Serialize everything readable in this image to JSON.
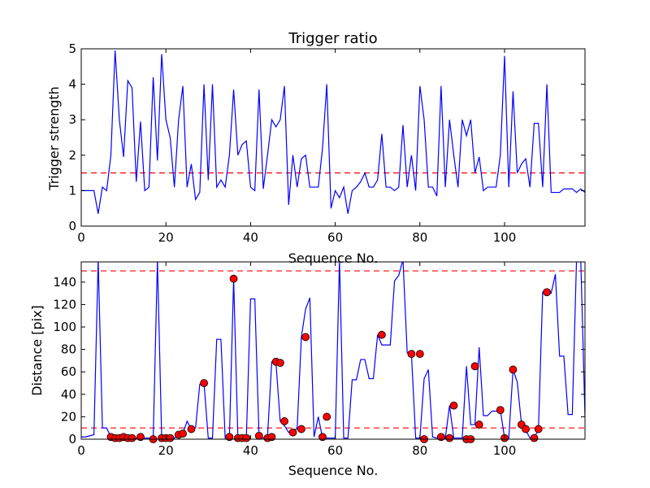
{
  "chart_data": [
    {
      "type": "line",
      "title": "Trigger ratio",
      "xlabel": "Sequence No.",
      "ylabel": "Trigger strength",
      "xlim": [
        0,
        119
      ],
      "ylim": [
        0,
        5
      ],
      "xticks": [
        0,
        20,
        40,
        60,
        80,
        100
      ],
      "yticks": [
        0,
        1,
        2,
        3,
        4,
        5
      ],
      "threshold": 1.5,
      "series": [
        {
          "color": "#0000ff",
          "values": [
            1.0,
            1.0,
            1.0,
            1.0,
            0.35,
            1.1,
            1.0,
            2.0,
            4.95,
            3.0,
            1.95,
            4.1,
            3.9,
            1.25,
            2.95,
            1.0,
            1.1,
            4.2,
            1.85,
            4.85,
            3.0,
            2.5,
            1.1,
            3.0,
            3.95,
            1.1,
            1.75,
            0.75,
            0.95,
            4.0,
            1.3,
            4.0,
            1.1,
            1.3,
            1.1,
            2.0,
            3.85,
            2.0,
            2.3,
            2.4,
            1.1,
            1.0,
            3.85,
            1.05,
            2.0,
            3.0,
            2.8,
            3.0,
            3.95,
            0.6,
            2.0,
            1.1,
            1.9,
            2.0,
            1.1,
            1.1,
            1.1,
            2.2,
            4.0,
            0.5,
            1.0,
            0.8,
            1.1,
            0.35,
            1.0,
            1.1,
            1.25,
            1.5,
            1.1,
            1.1,
            1.3,
            2.6,
            1.1,
            1.1,
            1.0,
            1.1,
            2.85,
            1.1,
            2.0,
            1.0,
            3.95,
            3.0,
            1.1,
            1.1,
            0.85,
            3.95,
            1.1,
            3.0,
            2.0,
            1.1,
            3.0,
            2.55,
            3.0,
            1.5,
            1.95,
            1.0,
            1.1,
            1.1,
            1.1,
            2.0,
            4.8,
            1.1,
            3.8,
            1.5,
            1.75,
            1.9,
            1.1,
            2.9,
            2.9,
            1.1,
            4.0,
            0.95,
            0.95,
            0.95,
            1.05,
            1.05,
            1.05,
            0.95,
            1.05,
            0.95
          ]
        }
      ]
    },
    {
      "type": "line",
      "title": "",
      "xlabel": "Sequence No.",
      "ylabel": "Distance [pix]",
      "xlim": [
        0,
        119
      ],
      "ylim": [
        0,
        158
      ],
      "xticks": [
        0,
        20,
        40,
        60,
        80,
        100
      ],
      "yticks": [
        0,
        20,
        40,
        60,
        80,
        100,
        120,
        140
      ],
      "thresholds": [
        10,
        150
      ],
      "series": [
        {
          "color": "#0000ff",
          "values": [
            2,
            2,
            3,
            4,
            160,
            10,
            10,
            2,
            1,
            1,
            2,
            1,
            1,
            1,
            1,
            1,
            1,
            1,
            160,
            1,
            1,
            1,
            1,
            4,
            5,
            16,
            9,
            10,
            49,
            50,
            1,
            1,
            89,
            89,
            1,
            1,
            143,
            1,
            1,
            1,
            125,
            125,
            3,
            1,
            2,
            69,
            68,
            16,
            12,
            6,
            8,
            9,
            91,
            116,
            126,
            2,
            20,
            1,
            1,
            1,
            1,
            160,
            1,
            1,
            53,
            53,
            71,
            71,
            54,
            54,
            93,
            84,
            84,
            84,
            141,
            146,
            160,
            77,
            76,
            1,
            1,
            54,
            62,
            2,
            1,
            1,
            1,
            30,
            1,
            1,
            1,
            65,
            13,
            13,
            82,
            21,
            21,
            25,
            25,
            26,
            1,
            1,
            62,
            51,
            13,
            8,
            1,
            1,
            9,
            131,
            131,
            130,
            147,
            74,
            74,
            22,
            22,
            160,
            160,
            20
          ]
        }
      ],
      "markers": {
        "color": "#ff0000",
        "x": [
          7,
          8,
          9,
          10,
          11,
          12,
          14,
          17,
          19,
          20,
          21,
          23,
          24,
          26,
          29,
          35,
          36,
          37,
          38,
          39,
          42,
          44,
          45,
          46,
          47,
          48,
          50,
          52,
          53,
          57,
          58,
          71,
          78,
          80,
          81,
          85,
          87,
          88,
          91,
          92,
          93,
          94,
          99,
          100,
          102,
          104,
          105,
          107,
          108,
          110
        ],
        "y": [
          2,
          1,
          1,
          2,
          1,
          1,
          2,
          0,
          1,
          1,
          1,
          4,
          5,
          9,
          50,
          2,
          143,
          1,
          1,
          1,
          3,
          1,
          2,
          69,
          68,
          16,
          6,
          9,
          91,
          2,
          20,
          93,
          76,
          76,
          0,
          2,
          1,
          30,
          0,
          0,
          65,
          13,
          26,
          1,
          62,
          13,
          9,
          1,
          9,
          131
        ]
      }
    }
  ]
}
